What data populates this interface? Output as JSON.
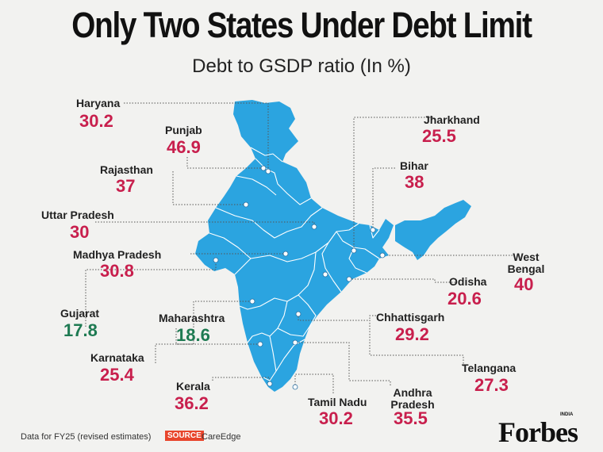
{
  "title": "Only Two States Under Debt Limit",
  "subtitle": "Debt to GSDP ratio (In %)",
  "colors": {
    "map": "#2ba4e0",
    "high": "#c81f4d",
    "low": "#1e7a52",
    "source_badge": "#e8452c"
  },
  "states": [
    {
      "name": "Haryana",
      "value": "30.2"
    },
    {
      "name": "Punjab",
      "value": "46.9"
    },
    {
      "name": "Rajasthan",
      "value": "37"
    },
    {
      "name": "Uttar Pradesh",
      "value": "30"
    },
    {
      "name": "Madhya Pradesh",
      "value": "30.8"
    },
    {
      "name": "Gujarat",
      "value": "17.8"
    },
    {
      "name": "Maharashtra",
      "value": "18.6"
    },
    {
      "name": "Karnataka",
      "value": "25.4"
    },
    {
      "name": "Kerala",
      "value": "36.2"
    },
    {
      "name": "Tamil Nadu",
      "value": "30.2"
    },
    {
      "name": "Andhra Pradesh",
      "value": "35.5"
    },
    {
      "name": "Telangana",
      "value": "27.3"
    },
    {
      "name": "Chhattisgarh",
      "value": "29.2"
    },
    {
      "name": "Odisha",
      "value": "20.6"
    },
    {
      "name": "West Bengal",
      "value": "40"
    },
    {
      "name": "Bihar",
      "value": "38"
    },
    {
      "name": "Jharkhand",
      "value": "25.5"
    }
  ],
  "footer": {
    "note": "Data for FY25 (revised estimates)",
    "source_label": "SOURCE",
    "source_name": "CareEdge"
  },
  "brand": {
    "name": "Forbes",
    "edition": "INDIA"
  }
}
